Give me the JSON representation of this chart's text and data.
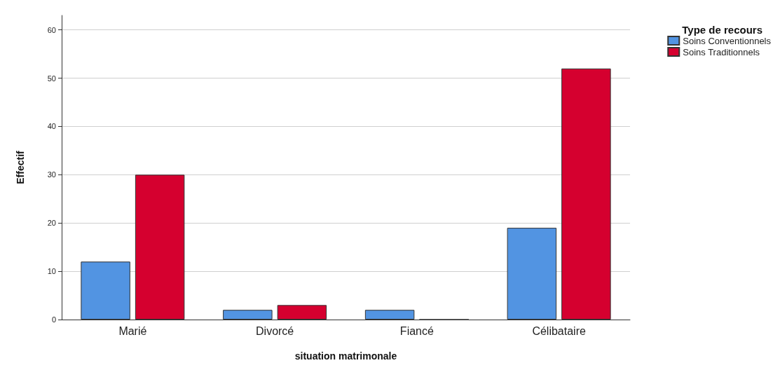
{
  "chart_data": {
    "type": "bar",
    "xlabel": "situation matrimonale",
    "ylabel": "Effectif",
    "legend_title": "Type de recours",
    "categories": [
      "Marié",
      "Divorcé",
      "Fiancé",
      "Célibataire"
    ],
    "series": [
      {
        "name": "Soins Conventionnels",
        "color": "#5294e2",
        "values": [
          12,
          2,
          2,
          19
        ]
      },
      {
        "name": "Soins Traditionnels",
        "color": "#d5002f",
        "values": [
          30,
          3,
          0,
          52
        ]
      }
    ],
    "ylim": [
      0,
      63
    ],
    "yticks": [
      0,
      10,
      20,
      30,
      40,
      50,
      60
    ],
    "grid": "y",
    "legend": "top right"
  }
}
